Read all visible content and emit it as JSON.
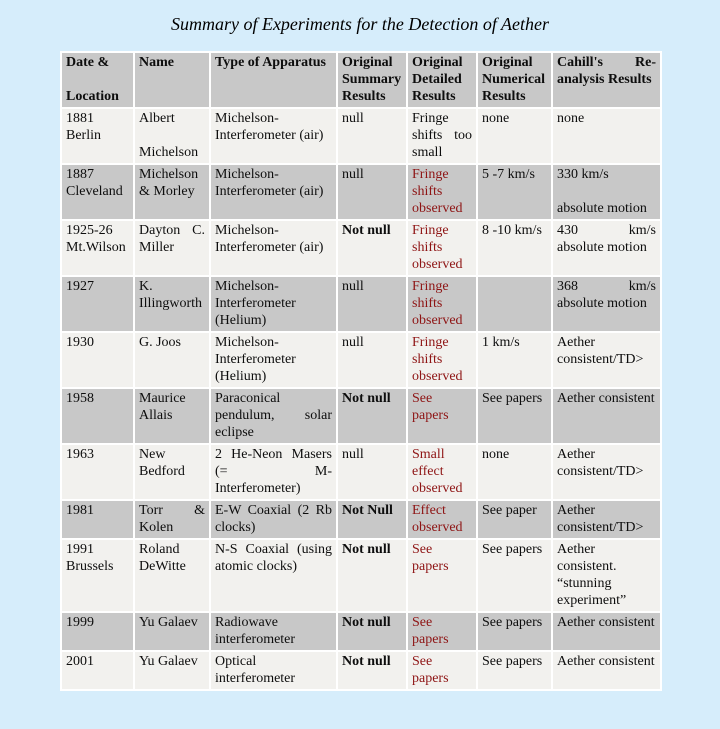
{
  "page": {
    "title": "Summary of Experiments for the Detection of Aether",
    "background_color": "#d6edfb"
  },
  "colors": {
    "header_bg": "#c8c8c8",
    "row_gray_bg": "#c8c8c8",
    "row_light_bg": "#f2f1ee",
    "cell_gap": "#ffffff",
    "emphasis_red": "#8e1414",
    "text": "#0d0d0d"
  },
  "table": {
    "columns": [
      {
        "label": "Date &\n\nLocation"
      },
      {
        "label": "Name"
      },
      {
        "label": "Type of Apparatus"
      },
      {
        "label": "Original Summary Results"
      },
      {
        "label": "Original Detailed Results"
      },
      {
        "label": "Original Numerical Results"
      },
      {
        "label": "Cahill's Re-analysis Results"
      }
    ],
    "rows": [
      {
        "cells": [
          {
            "text": "1881\nBerlin"
          },
          {
            "text": "Albert\n\nMichelson"
          },
          {
            "text": "Michelson-Interferometer (air)"
          },
          {
            "text": "null"
          },
          {
            "text": "Fringe shifts too small"
          },
          {
            "text": "none"
          },
          {
            "text": "none"
          }
        ]
      },
      {
        "cells": [
          {
            "text": "1887\nCleveland"
          },
          {
            "text": "Michelson & Morley"
          },
          {
            "text": "Michelson-Interferometer (air)"
          },
          {
            "text": "null"
          },
          {
            "text": "Fringe shifts observed",
            "red": true
          },
          {
            "text": "5 -7 km/s"
          },
          {
            "text": "330 km/s\n\nabsolute motion"
          }
        ]
      },
      {
        "cells": [
          {
            "text": "1925-26\nMt.Wilson"
          },
          {
            "text": "Dayton C. Miller"
          },
          {
            "text": "Michelson-Interferometer (air)"
          },
          {
            "text": "Not null",
            "bold": true
          },
          {
            "text": "Fringe shifts observed",
            "red": true
          },
          {
            "text": "8 -10 km/s"
          },
          {
            "text": "430 km/s absolute motion"
          }
        ]
      },
      {
        "cells": [
          {
            "text": "1927"
          },
          {
            "text": "K. Illingworth"
          },
          {
            "text": "Michelson-Interferometer (Helium)"
          },
          {
            "text": "null"
          },
          {
            "text": "Fringe shifts observed",
            "red": true
          },
          {
            "text": ""
          },
          {
            "text": "368 km/s absolute motion"
          }
        ]
      },
      {
        "cells": [
          {
            "text": "1930"
          },
          {
            "text": "G. Joos"
          },
          {
            "text": "Michelson-Interferometer (Helium)"
          },
          {
            "text": "null"
          },
          {
            "text": "Fringe shifts observed",
            "red": true
          },
          {
            "text": "1 km/s"
          },
          {
            "text": "Aether consistent/TD>"
          }
        ]
      },
      {
        "cells": [
          {
            "text": "1958"
          },
          {
            "text": "Maurice Allais"
          },
          {
            "text": "Paraconical pendulum, solar eclipse"
          },
          {
            "text": "Not null",
            "bold": true
          },
          {
            "text": "See papers",
            "red": true
          },
          {
            "text": "See papers"
          },
          {
            "text": "Aether consistent"
          }
        ]
      },
      {
        "cells": [
          {
            "text": "1963"
          },
          {
            "text": "New Bedford"
          },
          {
            "text": "2 He-Neon Masers (= M-Interferometer)"
          },
          {
            "text": "null"
          },
          {
            "text": "Small effect observed",
            "red": true
          },
          {
            "text": "none"
          },
          {
            "text": "Aether consistent/TD>"
          }
        ]
      },
      {
        "cells": [
          {
            "text": "1981"
          },
          {
            "text": "Torr & Kolen"
          },
          {
            "text": "E-W Coaxial (2 Rb clocks)"
          },
          {
            "text": "Not Null",
            "bold": true
          },
          {
            "text": "Effect observed",
            "red": true
          },
          {
            "text": "See paper"
          },
          {
            "text": "Aether consistent/TD>"
          }
        ]
      },
      {
        "cells": [
          {
            "text": "1991\nBrussels"
          },
          {
            "text": "Roland DeWitte"
          },
          {
            "text": "N-S Coaxial (using atomic clocks)"
          },
          {
            "text": "Not null",
            "bold": true
          },
          {
            "text": "See papers",
            "red": true
          },
          {
            "text": "See papers"
          },
          {
            "text": "Aether consistent. “stunning experiment”"
          }
        ]
      },
      {
        "cells": [
          {
            "text": "1999"
          },
          {
            "text": "Yu Galaev"
          },
          {
            "text": "Radiowave interferometer"
          },
          {
            "text": "Not null",
            "bold": true
          },
          {
            "text": "See papers",
            "red": true
          },
          {
            "text": "See papers"
          },
          {
            "text": "Aether consistent"
          }
        ]
      },
      {
        "cells": [
          {
            "text": "2001"
          },
          {
            "text": "Yu Galaev"
          },
          {
            "text": "Optical interferometer"
          },
          {
            "text": "Not null",
            "bold": true
          },
          {
            "text": "See papers",
            "red": true
          },
          {
            "text": "See papers"
          },
          {
            "text": "Aether consistent"
          }
        ]
      }
    ]
  }
}
